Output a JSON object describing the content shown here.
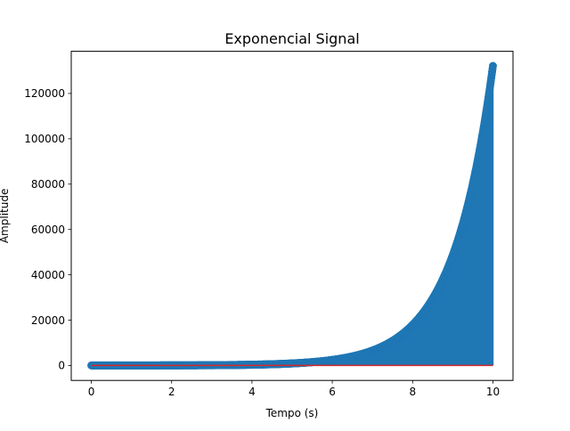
{
  "chart_data": {
    "type": "stem",
    "title": "Exponencial Signal",
    "xlabel": "Tempo (s)",
    "ylabel": "Amplitude",
    "xlim": [
      -0.5,
      10.5
    ],
    "ylim": [
      -6600,
      138600
    ],
    "xticks": [
      0,
      2,
      4,
      6,
      8,
      10
    ],
    "yticks": [
      0,
      20000,
      40000,
      60000,
      80000,
      100000,
      120000
    ],
    "grid": false,
    "legend": "none",
    "signal": {
      "function": "exp",
      "coefficient": 6,
      "rate": 1,
      "t_start": 0,
      "t_end": 10,
      "t_step": 0.01,
      "x_sample": [
        0,
        2,
        4,
        6,
        8,
        10
      ],
      "y_sample": [
        6,
        44,
        328,
        2421,
        17886,
        132159
      ]
    },
    "colors": {
      "stem": "#1f77b4",
      "baseline": "#d62728"
    }
  }
}
